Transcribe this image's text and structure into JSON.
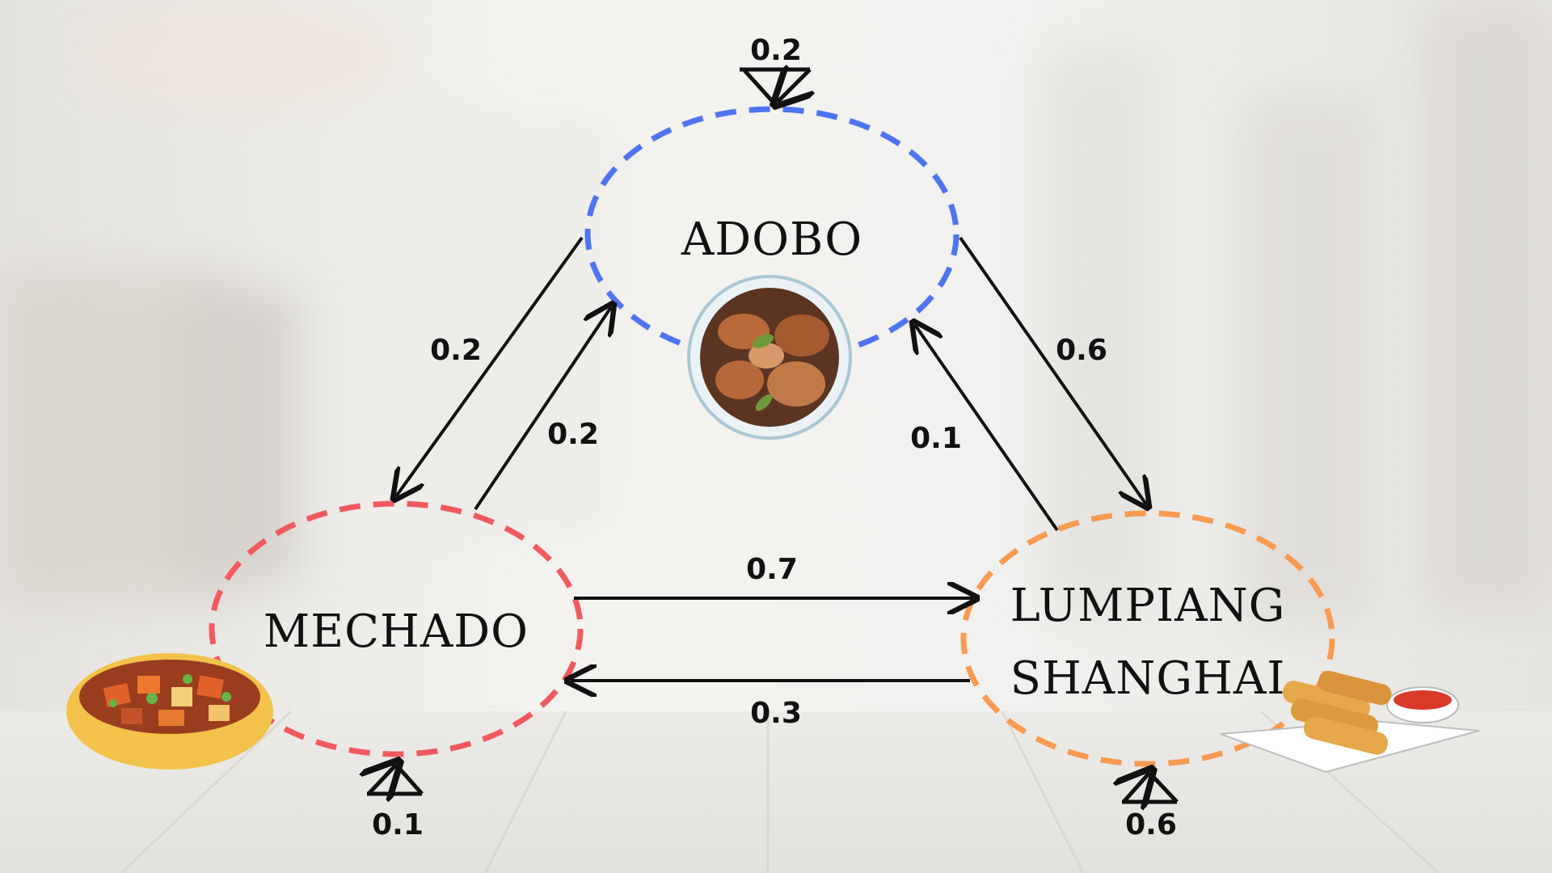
{
  "nodes": {
    "adobo": {
      "label": "ADOBO",
      "color": "#4f74f0"
    },
    "mechado": {
      "label": "MECHADO",
      "color": "#f05a5e"
    },
    "lumpiang": {
      "label_line1": "LUMPIANG",
      "label_line2": "SHANGHAI",
      "color": "#f89a52"
    }
  },
  "edges": {
    "adobo_self": "0.2",
    "adobo_to_mechado": "0.2",
    "mechado_to_adobo": "0.2",
    "adobo_to_lumpiang": "0.6",
    "lumpiang_to_adobo": "0.1",
    "mechado_to_lumpiang": "0.7",
    "lumpiang_to_mechado": "0.3",
    "mechado_self": "0.1",
    "lumpiang_self": "0.6"
  },
  "icons": {
    "adobo_dish": "adobo-bowl-icon",
    "mechado_dish": "mechado-bowl-icon",
    "lumpiang_dish": "spring-rolls-plate-icon"
  }
}
